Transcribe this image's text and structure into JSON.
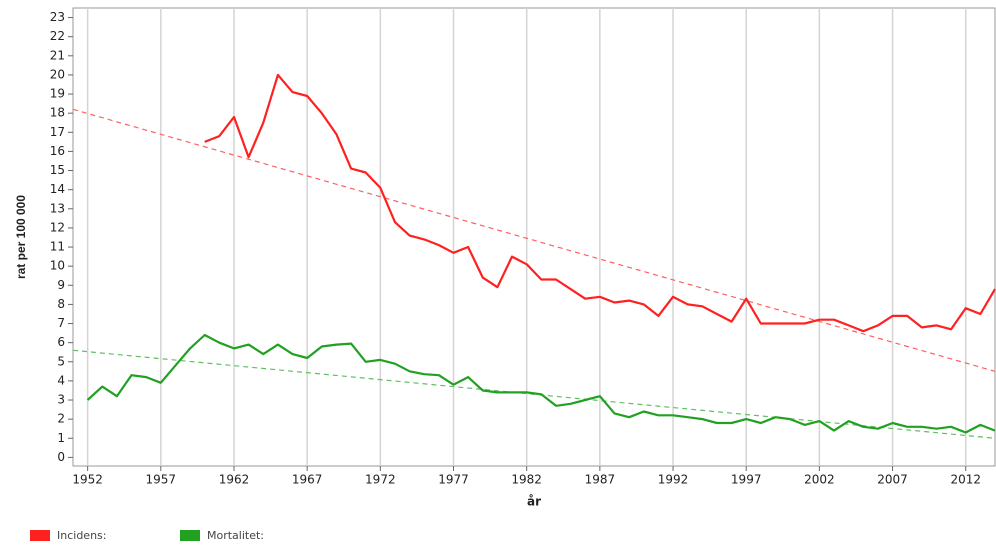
{
  "chart_data": {
    "type": "line",
    "ylabel": "rat per 100 000",
    "xlabel": "år",
    "x": [
      1952,
      1953,
      1954,
      1955,
      1956,
      1957,
      1958,
      1959,
      1960,
      1961,
      1962,
      1963,
      1964,
      1965,
      1966,
      1967,
      1968,
      1969,
      1970,
      1971,
      1972,
      1973,
      1974,
      1975,
      1976,
      1977,
      1978,
      1979,
      1980,
      1981,
      1982,
      1983,
      1984,
      1985,
      1986,
      1987,
      1988,
      1989,
      1990,
      1991,
      1992,
      1993,
      1994,
      1995,
      1996,
      1997,
      1998,
      1999,
      2000,
      2001,
      2002,
      2003,
      2004,
      2005,
      2006,
      2007,
      2008,
      2009,
      2010,
      2011,
      2012,
      2013,
      2014
    ],
    "series": [
      {
        "name": "Incidens:",
        "color": "#ff2020",
        "values": [
          null,
          null,
          null,
          null,
          null,
          null,
          null,
          null,
          16.5,
          16.8,
          17.8,
          15.7,
          17.5,
          20.0,
          19.1,
          18.9,
          18.0,
          16.9,
          15.1,
          14.9,
          14.1,
          12.3,
          11.6,
          11.4,
          11.1,
          10.7,
          11.0,
          9.4,
          8.9,
          10.5,
          10.1,
          9.3,
          9.3,
          8.8,
          8.3,
          8.4,
          8.1,
          8.2,
          8.0,
          7.4,
          8.4,
          8.0,
          7.9,
          7.5,
          7.1,
          8.3,
          7.0,
          7.0,
          7.0,
          7.0,
          7.2,
          7.2,
          6.9,
          6.6,
          6.9,
          7.4,
          7.4,
          6.8,
          6.9,
          6.7,
          7.8,
          7.5,
          8.8
        ]
      },
      {
        "name": "Mortalitet:",
        "color": "#22a022",
        "values": [
          3.0,
          3.7,
          3.2,
          4.3,
          4.2,
          3.9,
          4.8,
          5.7,
          6.4,
          6.0,
          5.7,
          5.9,
          5.4,
          5.9,
          5.4,
          5.2,
          5.8,
          5.9,
          5.95,
          5.0,
          5.1,
          4.9,
          4.5,
          4.35,
          4.3,
          3.8,
          4.2,
          3.5,
          3.4,
          3.4,
          3.4,
          3.3,
          2.7,
          2.8,
          3.0,
          3.2,
          2.3,
          2.1,
          2.4,
          2.2,
          2.2,
          2.1,
          2.0,
          1.8,
          1.8,
          2.0,
          1.8,
          2.1,
          2.0,
          1.7,
          1.9,
          1.4,
          1.9,
          1.6,
          1.5,
          1.8,
          1.6,
          1.6,
          1.5,
          1.6,
          1.3,
          1.7,
          1.4
        ]
      }
    ],
    "trends": [
      {
        "color": "#ff6060",
        "x": [
          1951,
          2014
        ],
        "values": [
          18.2,
          4.5
        ]
      },
      {
        "color": "#60c060",
        "x": [
          1951,
          2014
        ],
        "values": [
          5.6,
          1.0
        ]
      }
    ],
    "xlim": [
      1951,
      2014
    ],
    "ylim": [
      -0.45,
      23.5
    ],
    "xticks": [
      1952,
      1957,
      1962,
      1967,
      1972,
      1977,
      1982,
      1987,
      1992,
      1997,
      2002,
      2007,
      2012
    ],
    "yticks": [
      0,
      1,
      2,
      3,
      4,
      5,
      6,
      7,
      8,
      9,
      10,
      11,
      12,
      13,
      14,
      15,
      16,
      17,
      18,
      19,
      20,
      21,
      22,
      23
    ],
    "grid": "x"
  }
}
